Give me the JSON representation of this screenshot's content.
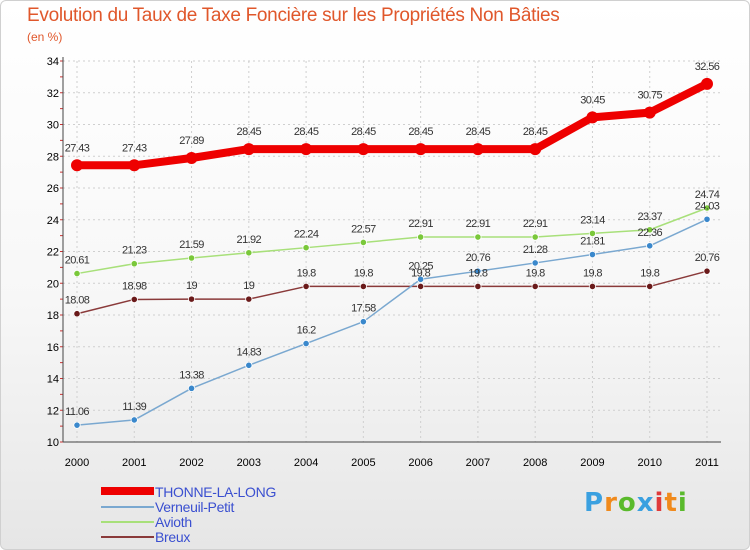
{
  "title": "Evolution du Taux de Taxe Foncière sur les Propriétés Non Bâties",
  "subtitle": "(en %)",
  "logo": {
    "letters": [
      "P",
      "r",
      "o",
      "x",
      "i",
      "t",
      "i"
    ],
    "colors": [
      "#3aa0e0",
      "#f08a1c",
      "#5aba2c",
      "#3aa0e0",
      "#e03a3a",
      "#f08a1c",
      "#5aba2c"
    ]
  },
  "chart_data": {
    "type": "line",
    "title": "Evolution du Taux de Taxe Foncière sur les Propriétés Non Bâties",
    "ylabel": "(en %)",
    "xlabel": "",
    "x": [
      "2000",
      "2001",
      "2002",
      "2003",
      "2004",
      "2005",
      "2006",
      "2007",
      "2008",
      "2009",
      "2010",
      "2011"
    ],
    "ylim": [
      10,
      34
    ],
    "yticks": [
      10,
      12,
      14,
      16,
      18,
      20,
      22,
      24,
      26,
      28,
      30,
      32,
      34
    ],
    "grid": true,
    "legend_position": "bottom-left",
    "series": [
      {
        "name": "THONNE-LA-LONG",
        "color": "#ee0000",
        "values": [
          27.43,
          27.43,
          27.89,
          28.45,
          28.45,
          28.45,
          28.45,
          28.45,
          28.45,
          30.45,
          30.75,
          32.56
        ],
        "labels": [
          "27.43",
          "27.43",
          "27.89",
          "28.45",
          "28.45",
          "28.45",
          "28.45",
          "28.45",
          "28.45",
          "30.45",
          "30.75",
          "32.56"
        ]
      },
      {
        "name": "Verneuil-Petit",
        "color": "#7aa8d0",
        "point_color": "#3a88cc",
        "values": [
          11.06,
          11.39,
          13.38,
          14.83,
          16.2,
          17.58,
          20.25,
          20.76,
          21.28,
          21.81,
          22.36,
          24.03
        ],
        "labels": [
          "11.06",
          "11.39",
          "13.38",
          "14.83",
          "16.2",
          "17.58",
          "20.25",
          "20.76",
          "21.28",
          "21.81",
          "22.36",
          "24.03"
        ]
      },
      {
        "name": "Avioth",
        "color": "#a8e07a",
        "point_color": "#7ac83a",
        "values": [
          20.61,
          21.23,
          21.59,
          21.92,
          22.24,
          22.57,
          22.91,
          22.91,
          22.91,
          23.14,
          23.37,
          24.74
        ],
        "labels": [
          "20.61",
          "21.23",
          "21.59",
          "21.92",
          "22.24",
          "22.57",
          "22.91",
          "22.91",
          "22.91",
          "23.14",
          "23.37",
          "24.74"
        ]
      },
      {
        "name": "Breux",
        "color": "#8a3a3a",
        "point_color": "#6a1a1a",
        "values": [
          18.08,
          18.98,
          19,
          19,
          19.8,
          19.8,
          19.8,
          19.8,
          19.8,
          19.8,
          19.8,
          20.76
        ],
        "labels": [
          "18.08",
          "18.98",
          "19",
          "19",
          "19.8",
          "19.8",
          "19.8",
          "19.8",
          "19.8",
          "19.8",
          "19.8",
          "20.76"
        ]
      }
    ]
  }
}
